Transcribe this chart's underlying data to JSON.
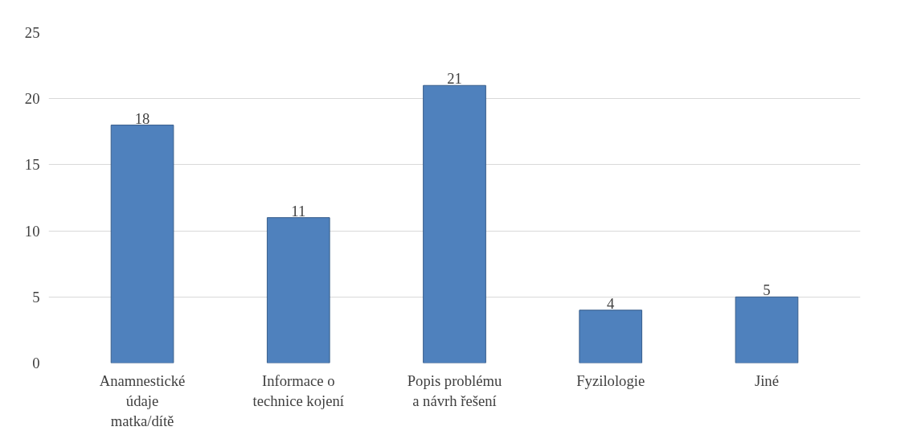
{
  "chart_data": {
    "type": "bar",
    "categories": [
      "Anamnestické údaje matka/dítě",
      "Informace o technice kojení",
      "Popis problému a návrh řešení",
      "Fyzilologie",
      "Jiné"
    ],
    "values": [
      18,
      11,
      21,
      4,
      5
    ],
    "color": "#4f81bd",
    "ylim": [
      0,
      25
    ],
    "yticks": [
      0,
      5,
      10,
      15,
      20,
      25
    ],
    "grid": "y",
    "data_labels": true
  }
}
